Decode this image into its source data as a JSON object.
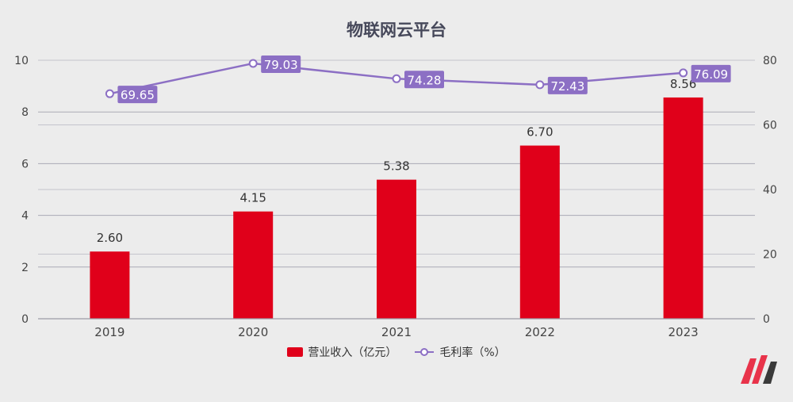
{
  "chart_data": {
    "type": "bar",
    "title": "物联网云平台",
    "categories": [
      "2019",
      "2020",
      "2021",
      "2022",
      "2023"
    ],
    "series": [
      {
        "name": "营业收入（亿元）",
        "type": "bar",
        "axis": "left",
        "color": "#e0001a",
        "values": [
          2.6,
          4.15,
          5.38,
          6.7,
          8.56
        ],
        "labels": [
          "2.60",
          "4.15",
          "5.38",
          "6.70",
          "8.56"
        ]
      },
      {
        "name": "毛利率（%）",
        "type": "line",
        "axis": "right",
        "color": "#8c6fc4",
        "values": [
          69.65,
          79.03,
          74.28,
          72.43,
          76.09
        ],
        "labels": [
          "69.65",
          "79.03",
          "74.28",
          "72.43",
          "76.09"
        ]
      }
    ],
    "y_left": {
      "lim": [
        0,
        10
      ],
      "ticks": [
        "0",
        "2",
        "4",
        "6",
        "8",
        "10"
      ]
    },
    "y_right": {
      "lim": [
        0,
        80
      ],
      "ticks": [
        "0",
        "20",
        "40",
        "60",
        "80"
      ]
    },
    "grid": true,
    "legend_position": "bottom"
  },
  "logo_icon": "brand-logo-icon"
}
